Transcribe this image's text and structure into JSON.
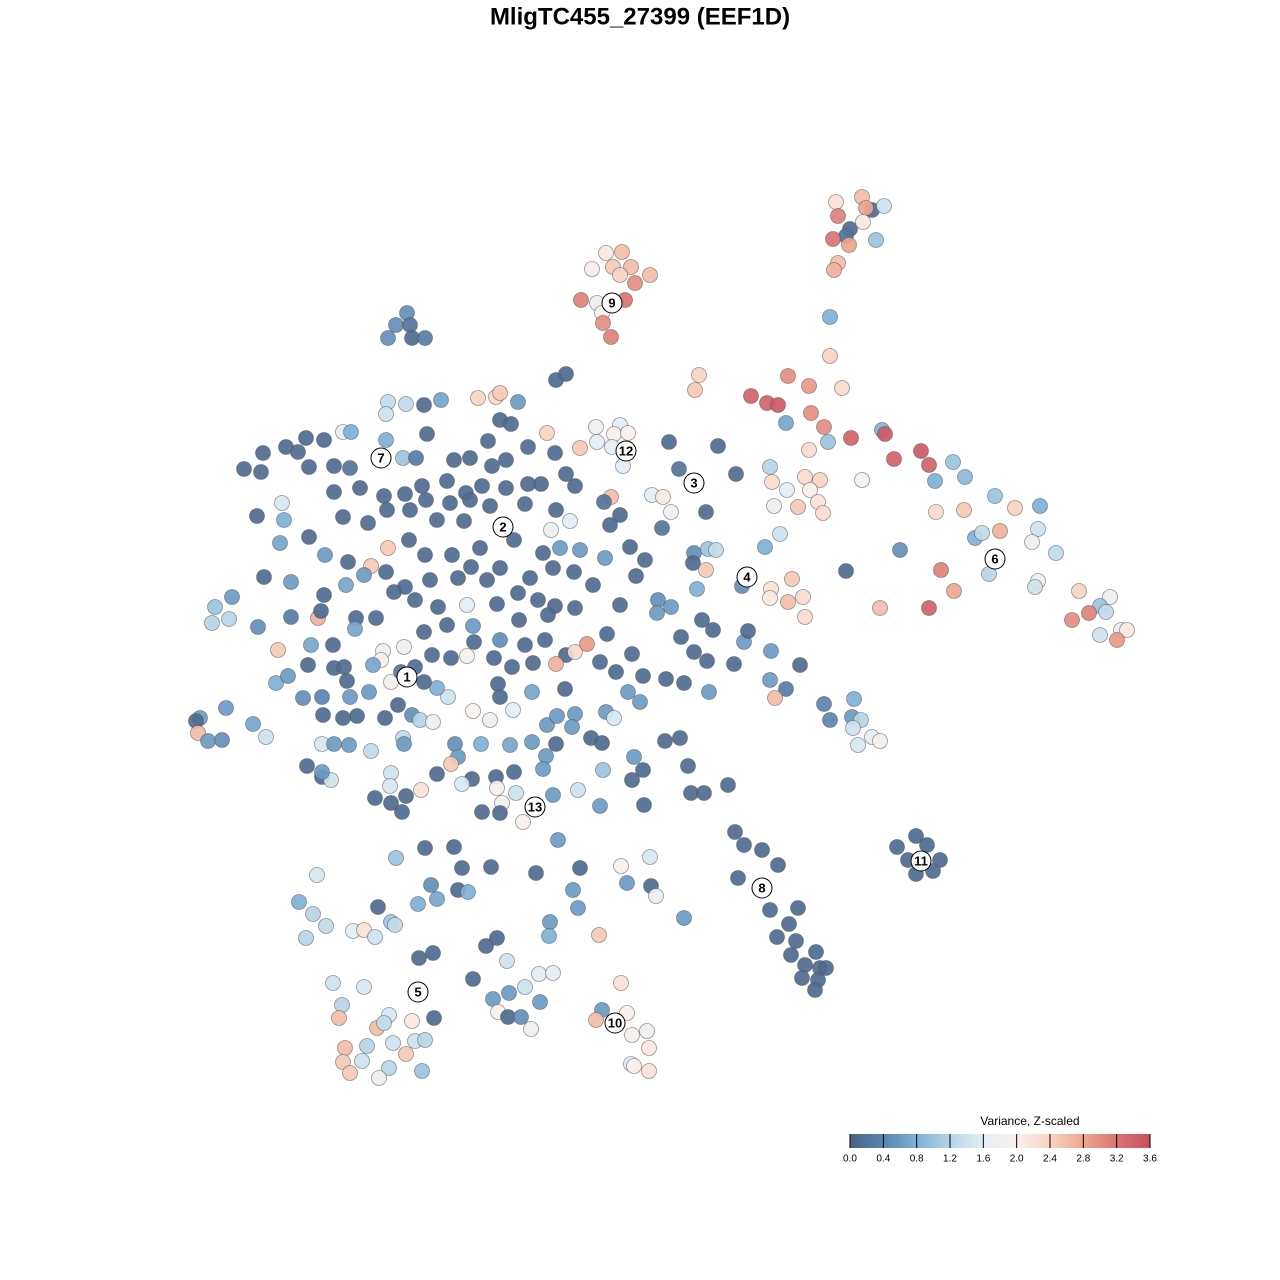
{
  "chart_data": {
    "type": "scatter",
    "title": "MligTC455_27399 (EEF1D)",
    "xlim": [
      0,
      1280
    ],
    "ylim": [
      1280,
      0
    ],
    "x": [
      836,
      862,
      872,
      884,
      838,
      866,
      850,
      846,
      833,
      849,
      863,
      876,
      838,
      834,
      830,
      830,
      606,
      622,
      592,
      613,
      631,
      620,
      650,
      635,
      581,
      597,
      625,
      602,
      603,
      611,
      407,
      396,
      410,
      388,
      412,
      425,
      699,
      695,
      751,
      767,
      778,
      788,
      809,
      842,
      811,
      786,
      824,
      828,
      851,
      882,
      885,
      809,
      894,
      921,
      929,
      953,
      965,
      935,
      862,
      770,
      787,
      805,
      820,
      772,
      810,
      818,
      774,
      798,
      823,
      780,
      765,
      995,
      1040,
      936,
      964,
      1015,
      975,
      982,
      1000,
      1038,
      1032,
      1056,
      900,
      989,
      1038,
      1035,
      941,
      954,
      929,
      880,
      846,
      1079,
      1110,
      1100,
      1106,
      1089,
      1072,
      1121,
      1127,
      1117,
      1100,
      792,
      771,
      803,
      788,
      770,
      805,
      742,
      744,
      748,
      734,
      771,
      800,
      770,
      786,
      775,
      824,
      854,
      830,
      852,
      861,
      853,
      872,
      880,
      858,
      596,
      620,
      614,
      628,
      597,
      580,
      612,
      623,
      669,
      679,
      652,
      663,
      611,
      604,
      620,
      671,
      706,
      736,
      662,
      718,
      694,
      708,
      716,
      693,
      706,
      697,
      658,
      671,
      702,
      713,
      681,
      694,
      707,
      556,
      566,
      478,
      496,
      500,
      518,
      441,
      424,
      406,
      388,
      386,
      343,
      351,
      324,
      306,
      286,
      263,
      298,
      244,
      261,
      309,
      334,
      350,
      386,
      403,
      416,
      427,
      500,
      511,
      547,
      488,
      454,
      470,
      492,
      506,
      528,
      555,
      566,
      575,
      541,
      528,
      506,
      482,
      466,
      447,
      422,
      405,
      384,
      360,
      334,
      282,
      257,
      284,
      309,
      343,
      368,
      387,
      410,
      426,
      450,
      470,
      490,
      525,
      556,
      570,
      437,
      464,
      409,
      388,
      425,
      452,
      480,
      514,
      551,
      543,
      560,
      580,
      610,
      630,
      605,
      636,
      645,
      280,
      325,
      348,
      371,
      364,
      386,
      405,
      430,
      458,
      471,
      487,
      500,
      530,
      553,
      574,
      593,
      264,
      291,
      232,
      215,
      212,
      229,
      258,
      291,
      318,
      321,
      324,
      346,
      356,
      376,
      394,
      415,
      438,
      467,
      497,
      518,
      538,
      555,
      575,
      620,
      657,
      548,
      519,
      473,
      447,
      424,
      404,
      383,
      381,
      373,
      355,
      333,
      311,
      278,
      308,
      334,
      344,
      347,
      276,
      288,
      303,
      322,
      350,
      369,
      391,
      401,
      415,
      432,
      451,
      467,
      474,
      500,
      525,
      545,
      566,
      575,
      587,
      607,
      632,
      494,
      512,
      533,
      556,
      600,
      616,
      643,
      666,
      684,
      709,
      628,
      640,
      606,
      614,
      565,
      532,
      498,
      500,
      513,
      490,
      473,
      448,
      437,
      424,
      398,
      412,
      420,
      433,
      385,
      357,
      343,
      323,
      253,
      266,
      226,
      200,
      196,
      198,
      208,
      222,
      322,
      334,
      349,
      371,
      403,
      404,
      455,
      458,
      481,
      510,
      532,
      547,
      557,
      575,
      572,
      556,
      591,
      602,
      546,
      543,
      514,
      496,
      472,
      451,
      437,
      462,
      497,
      516,
      502,
      523,
      482,
      500,
      553,
      578,
      600,
      603,
      634,
      643,
      632,
      644,
      665,
      680,
      688,
      691,
      704,
      728,
      307,
      322,
      331,
      322,
      391,
      390,
      375,
      391,
      406,
      421,
      402,
      735,
      744,
      762,
      778,
      738,
      770,
      798,
      789,
      777,
      796,
      791,
      816,
      805,
      820,
      826,
      802,
      818,
      815,
      916,
      897,
      927,
      940,
      908,
      933,
      916,
      558,
      425,
      454,
      396,
      462,
      491,
      536,
      317,
      431,
      458,
      580,
      621,
      650,
      627,
      651,
      656,
      418,
      437,
      468,
      573,
      578,
      684,
      299,
      378,
      313,
      326,
      391,
      395,
      306,
      353,
      364,
      375,
      550,
      549,
      599,
      497,
      486,
      433,
      419,
      507,
      539,
      553,
      473,
      525,
      509,
      540,
      493,
      333,
      364,
      342,
      498,
      508,
      521,
      531,
      621,
      602,
      627,
      596,
      434,
      339,
      389,
      377,
      384,
      412,
      367,
      393,
      415,
      425,
      406,
      647,
      632,
      649,
      345,
      343,
      362,
      389,
      422,
      350,
      379,
      631,
      634,
      649
    ],
    "y": [
      202,
      197,
      210,
      206,
      216,
      208,
      229,
      236,
      239,
      245,
      222,
      240,
      263,
      270,
      317,
      356,
      253,
      252,
      269,
      267,
      267,
      275,
      275,
      283,
      300,
      303,
      300,
      313,
      323,
      337,
      313,
      325,
      325,
      338,
      338,
      338,
      375,
      390,
      396,
      403,
      405,
      376,
      386,
      388,
      413,
      423,
      427,
      442,
      438,
      430,
      434,
      450,
      459,
      451,
      465,
      462,
      477,
      481,
      480,
      467,
      490,
      477,
      480,
      482,
      490,
      502,
      506,
      507,
      513,
      534,
      547,
      496,
      506,
      512,
      510,
      508,
      538,
      533,
      531,
      529,
      542,
      553,
      550,
      574,
      581,
      587,
      570,
      591,
      608,
      608,
      571,
      591,
      597,
      606,
      612,
      613,
      620,
      630,
      630,
      640,
      635,
      579,
      589,
      597,
      602,
      598,
      617,
      586,
      642,
      631,
      664,
      651,
      665,
      680,
      689,
      698,
      704,
      699,
      720,
      717,
      720,
      728,
      737,
      741,
      745,
      427,
      425,
      434,
      433,
      442,
      448,
      447,
      466,
      442,
      469,
      495,
      497,
      497,
      502,
      515,
      512,
      512,
      474,
      528,
      446,
      553,
      549,
      550,
      563,
      570,
      589,
      600,
      607,
      620,
      630,
      637,
      652,
      661,
      380,
      374,
      398,
      397,
      393,
      402,
      400,
      405,
      404,
      402,
      414,
      432,
      432,
      440,
      438,
      447,
      453,
      452,
      469,
      472,
      467,
      466,
      468,
      440,
      458,
      458,
      434,
      420,
      424,
      433,
      441,
      460,
      458,
      466,
      460,
      447,
      453,
      474,
      486,
      484,
      484,
      488,
      486,
      493,
      481,
      486,
      494,
      496,
      488,
      492,
      503,
      516,
      520,
      537,
      517,
      523,
      510,
      510,
      500,
      503,
      500,
      506,
      504,
      510,
      521,
      520,
      521,
      540,
      548,
      555,
      555,
      548,
      540,
      530,
      553,
      548,
      550,
      525,
      547,
      558,
      576,
      560,
      543,
      555,
      562,
      566,
      575,
      572,
      587,
      580,
      578,
      567,
      580,
      568,
      578,
      568,
      572,
      585,
      577,
      582,
      597,
      607,
      623,
      619,
      627,
      617,
      618,
      611,
      595,
      585,
      618,
      618,
      592,
      600,
      607,
      605,
      604,
      593,
      600,
      606,
      608,
      605,
      613,
      615,
      620,
      626,
      625,
      632,
      647,
      651,
      660,
      665,
      629,
      645,
      645,
      650,
      665,
      668,
      667,
      681,
      683,
      676,
      698,
      697,
      697,
      692,
      682,
      672,
      667,
      655,
      658,
      656,
      642,
      640,
      645,
      640,
      655,
      652,
      644,
      634,
      654,
      658,
      667,
      663,
      664,
      662,
      672,
      676,
      679,
      683,
      692,
      692,
      702,
      712,
      718,
      689,
      692,
      684,
      697,
      710,
      720,
      711,
      697,
      688,
      682,
      705,
      715,
      720,
      722,
      718,
      716,
      718,
      715,
      724,
      737,
      708,
      718,
      721,
      733,
      741,
      740,
      744,
      744,
      745,
      751,
      738,
      744,
      744,
      757,
      744,
      745,
      742,
      725,
      716,
      714,
      727,
      744,
      738,
      743,
      756,
      769,
      772,
      777,
      779,
      764,
      774,
      784,
      788,
      793,
      803,
      822,
      812,
      813,
      795,
      790,
      806,
      770,
      757,
      770,
      780,
      805,
      741,
      738,
      766,
      793,
      793,
      785,
      766,
      777,
      780,
      772,
      773,
      786,
      798,
      803,
      796,
      790,
      812,
      832,
      845,
      850,
      865,
      878,
      910,
      908,
      924,
      937,
      941,
      955,
      952,
      965,
      968,
      968,
      978,
      980,
      990,
      836,
      847,
      845,
      860,
      860,
      871,
      874,
      840,
      848,
      847,
      858,
      868,
      867,
      873,
      875,
      885,
      890,
      868,
      866,
      857,
      883,
      886,
      896,
      904,
      899,
      892,
      890,
      908,
      918,
      902,
      907,
      914,
      926,
      922,
      925,
      938,
      931,
      930,
      937,
      922,
      936,
      935,
      938,
      946,
      953,
      958,
      961,
      974,
      973,
      979,
      987,
      993,
      1002,
      999,
      983,
      987,
      1005,
      1012,
      1017,
      1017,
      1029,
      983,
      1010,
      1013,
      1020,
      1018,
      1018,
      1015,
      1028,
      1023,
      1021,
      1046,
      1043,
      1041,
      1040,
      1054,
      1031,
      1035,
      1048,
      1048,
      1062,
      1061,
      1068,
      1071,
      1073,
      1078,
      1064,
      1066,
      1071
    ],
    "values": [
      2.2,
      2.6,
      0.1,
      1.4,
      3.1,
      2.8,
      0.1,
      0.2,
      3.2,
      2.8,
      2.1,
      1.0,
      2.6,
      2.7,
      0.8,
      2.4,
      2.1,
      2.6,
      2.0,
      2.5,
      2.6,
      2.4,
      2.6,
      3.0,
      3.1,
      1.8,
      3.2,
      2.0,
      3.0,
      3.1,
      0.5,
      0.5,
      0.2,
      0.5,
      0.1,
      0.3,
      2.4,
      2.5,
      3.4,
      3.4,
      3.5,
      3.0,
      2.9,
      2.3,
      3.0,
      0.7,
      3.0,
      1.0,
      3.4,
      0.8,
      3.5,
      2.3,
      3.4,
      3.5,
      3.4,
      1.0,
      0.9,
      0.8,
      2.0,
      1.2,
      1.6,
      2.3,
      2.4,
      2.3,
      2.0,
      2.2,
      1.8,
      2.5,
      2.3,
      1.4,
      0.8,
      1.0,
      0.8,
      2.3,
      2.5,
      2.4,
      0.8,
      1.3,
      2.7,
      1.4,
      1.8,
      1.3,
      0.5,
      1.2,
      1.8,
      1.4,
      3.1,
      2.8,
      3.4,
      2.6,
      0.1,
      2.4,
      1.8,
      1.0,
      1.3,
      3.1,
      3.0,
      1.8,
      2.1,
      2.9,
      1.4,
      2.5,
      2.2,
      2.3,
      2.6,
      2.1,
      2.3,
      0.5,
      0.6,
      0.1,
      0.1,
      0.6,
      0.1,
      0.6,
      0.3,
      2.6,
      0.4,
      0.8,
      0.4,
      0.6,
      1.2,
      1.4,
      1.6,
      1.9,
      1.5,
      1.8,
      1.6,
      2.0,
      2.0,
      1.6,
      2.5,
      1.6,
      1.6,
      0.1,
      0.2,
      1.6,
      2.1,
      2.6,
      0.2,
      0.1,
      1.8,
      0.1,
      0.1,
      0.2,
      0.1,
      0.5,
      1.0,
      1.3,
      0.1,
      2.5,
      0.8,
      0.5,
      0.6,
      0.1,
      0.1,
      0.1,
      0.1,
      0.1,
      0.1,
      0.1,
      2.4,
      2.3,
      2.5,
      0.6,
      0.7,
      0.1,
      1.3,
      1.3,
      1.4,
      1.6,
      0.8,
      0.1,
      0.1,
      0.1,
      0.1,
      0.1,
      0.1,
      0.1,
      0.1,
      0.1,
      0.2,
      0.8,
      1.0,
      0.3,
      0.1,
      0.1,
      0.1,
      2.4,
      0.1,
      0.1,
      0.1,
      0.1,
      0.1,
      0.1,
      0.1,
      0.1,
      0.1,
      0.1,
      0.1,
      0.1,
      0.1,
      0.1,
      0.1,
      0.1,
      0.1,
      0.1,
      0.1,
      0.1,
      1.5,
      0.1,
      0.8,
      0.1,
      0.1,
      0.1,
      0.1,
      0.1,
      0.1,
      0.1,
      0.1,
      0.1,
      0.1,
      0.1,
      1.6,
      0.1,
      0.1,
      0.1,
      2.5,
      0.1,
      0.1,
      0.1,
      0.1,
      1.8,
      0.1,
      0.6,
      0.6,
      0.1,
      0.1,
      0.6,
      0.1,
      0.1,
      0.7,
      0.6,
      0.1,
      2.5,
      0.6,
      0.1,
      0.1,
      0.1,
      0.1,
      0.1,
      0.1,
      0.1,
      0.1,
      0.1,
      0.1,
      0.1,
      0.1,
      0.6,
      0.6,
      1.0,
      1.2,
      1.2,
      0.5,
      0.3,
      2.7,
      0.1,
      0.1,
      0.7,
      0.1,
      0.1,
      0.1,
      0.1,
      0.1,
      1.6,
      0.1,
      0.1,
      0.1,
      0.1,
      0.1,
      0.1,
      0.6,
      0.1,
      0.1,
      0.6,
      0.1,
      0.1,
      1.8,
      1.9,
      2.0,
      0.7,
      0.7,
      0.1,
      0.7,
      2.5,
      0.1,
      0.1,
      0.1,
      0.1,
      0.8,
      0.6,
      0.5,
      0.4,
      0.6,
      0.6,
      1.9,
      0.2,
      0.1,
      0.1,
      0.1,
      2.0,
      0.1,
      0.5,
      0.1,
      0.1,
      0.1,
      2.3,
      2.9,
      0.1,
      0.1,
      0.1,
      0.1,
      0.1,
      2.7,
      0.1,
      0.1,
      0.1,
      0.1,
      0.1,
      0.6,
      0.6,
      0.6,
      0.6,
      1.5,
      0.1,
      0.7,
      0.1,
      0.1,
      1.6,
      1.8,
      2.0,
      1.4,
      0.8,
      0.1,
      0.1,
      0.5,
      1.2,
      1.7,
      0.1,
      0.1,
      0.1,
      0.1,
      0.7,
      1.4,
      0.6,
      0.6,
      0.1,
      2.6,
      0.6,
      0.5,
      1.5,
      0.6,
      0.6,
      1.3,
      1.3,
      0.6,
      0.5,
      0.6,
      0.8,
      0.7,
      0.6,
      0.6,
      0.6,
      0.6,
      0.6,
      0.1,
      0.1,
      0.1,
      0.6,
      0.6,
      0.1,
      0.1,
      0.1,
      2.5,
      0.1,
      1.5,
      2.0,
      1.4,
      1.9,
      2.0,
      0.1,
      0.1,
      0.6,
      1.4,
      0.6,
      1.0,
      0.6,
      0.1,
      0.1,
      0.1,
      0.1,
      0.1,
      0.1,
      0.1,
      0.1,
      0.1,
      0.1,
      0.1,
      1.4,
      0.6,
      1.4,
      1.5,
      0.1,
      0.1,
      0.1,
      2.2,
      0.1,
      0.1,
      0.1,
      0.1,
      0.1,
      0.1,
      0.1,
      0.1,
      0.1,
      0.1,
      0.1,
      0.1,
      0.1,
      0.1,
      0.1,
      0.1,
      0.1,
      0.1,
      0.1,
      0.1,
      0.1,
      0.1,
      0.1,
      0.1,
      0.1,
      0.1,
      0.6,
      0.1,
      0.1,
      1.0,
      0.1,
      0.1,
      0.1,
      1.5,
      0.5,
      0.1,
      0.1,
      2.0,
      1.5,
      0.6,
      0.1,
      1.8,
      0.8,
      0.7,
      0.8,
      0.6,
      0.6,
      0.6,
      0.8,
      0.1,
      1.2,
      1.3,
      1.0,
      1.3,
      1.2,
      1.6,
      2.2,
      1.4,
      0.6,
      0.8,
      2.5,
      0.1,
      0.1,
      0.1,
      0.1,
      1.4,
      1.6,
      1.6,
      0.1,
      1.4,
      0.6,
      0.6,
      0.6,
      1.4,
      1.5,
      1.2,
      2.0,
      0.1,
      0.5,
      1.8,
      2.2,
      0.6,
      2.0,
      2.6,
      0.1,
      2.6,
      1.5,
      2.6,
      1.3,
      2.1,
      1.2,
      1.4,
      1.4,
      1.2,
      2.5,
      1.8,
      1.9,
      2.1,
      2.6,
      2.5,
      1.4,
      1.2,
      1.0,
      2.5,
      1.8,
      1.6,
      2.0,
      2.2
    ],
    "annotations": [
      {
        "text": "1",
        "x": 407,
        "y": 677
      },
      {
        "text": "2",
        "x": 503,
        "y": 527
      },
      {
        "text": "3",
        "x": 694,
        "y": 483
      },
      {
        "text": "4",
        "x": 747,
        "y": 577
      },
      {
        "text": "5",
        "x": 418,
        "y": 992
      },
      {
        "text": "6",
        "x": 995,
        "y": 559
      },
      {
        "text": "7",
        "x": 381,
        "y": 458
      },
      {
        "text": "8",
        "x": 762,
        "y": 888
      },
      {
        "text": "9",
        "x": 612,
        "y": 303
      },
      {
        "text": "10",
        "x": 615,
        "y": 1023
      },
      {
        "text": "11",
        "x": 921,
        "y": 861
      },
      {
        "text": "12",
        "x": 626,
        "y": 451
      },
      {
        "text": "13",
        "x": 535,
        "y": 807
      }
    ],
    "colorbar": {
      "title": "Variance, Z-scaled",
      "lim": [
        0,
        3.6
      ],
      "ticks": [
        {
          "value": 0,
          "label": "0.0"
        },
        {
          "value": 0.4,
          "label": "0.4"
        },
        {
          "value": 0.8,
          "label": "0.8"
        },
        {
          "value": 1.2,
          "label": "1.2"
        },
        {
          "value": 1.6,
          "label": "1.6"
        },
        {
          "value": 2.0,
          "label": "2.0"
        },
        {
          "value": 2.4,
          "label": "2.4"
        },
        {
          "value": 2.8,
          "label": "2.8"
        },
        {
          "value": 3.2,
          "label": "3.2"
        },
        {
          "value": 3.6,
          "label": "3.6"
        }
      ],
      "colorscale": [
        [
          0,
          "#4a6385"
        ],
        [
          0.4,
          "#5b84b1"
        ],
        [
          0.8,
          "#7fb1d6"
        ],
        [
          1.2,
          "#b6d5e7"
        ],
        [
          1.6,
          "#e3eef4"
        ],
        [
          2.0,
          "#f9f0ec"
        ],
        [
          2.4,
          "#f8d4c2"
        ],
        [
          2.8,
          "#eea68f"
        ],
        [
          3.2,
          "#db7473"
        ],
        [
          3.6,
          "#c7505f"
        ]
      ]
    }
  }
}
